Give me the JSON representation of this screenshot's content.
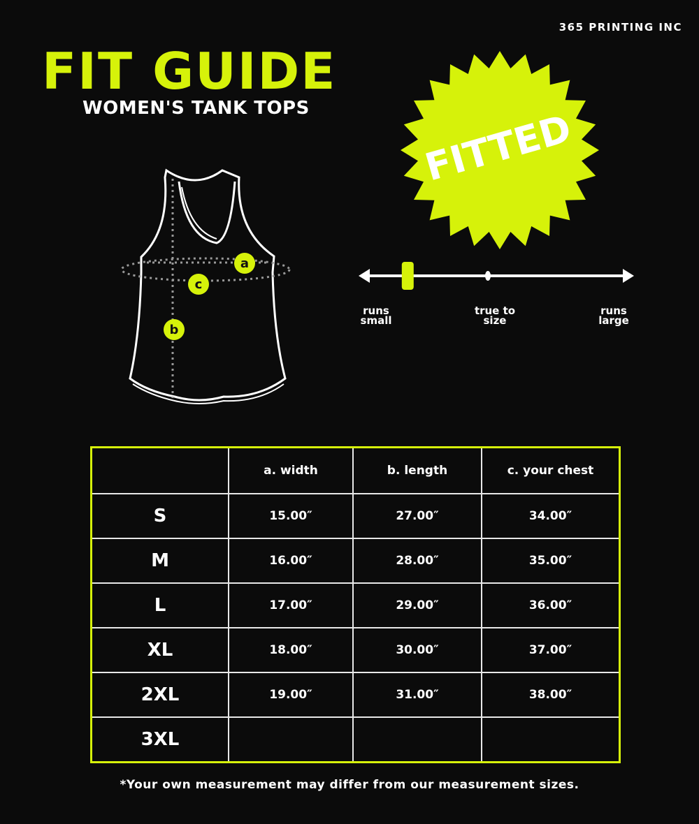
{
  "brand": "365 PRINTING INC",
  "title": "FIT GUIDE",
  "subtitle": "WOMEN'S TANK TOPS",
  "badge": "FITTED",
  "colors": {
    "accent": "#d6f20a",
    "background": "#0b0b0b",
    "text": "#ffffff"
  },
  "diagram": {
    "labels": [
      "a",
      "b",
      "c"
    ]
  },
  "fit_scale": {
    "labels": {
      "small": [
        "runs",
        "small"
      ],
      "true": [
        "true to",
        "size"
      ],
      "large": [
        "runs",
        "large"
      ]
    },
    "position": 0.17
  },
  "table": {
    "headers": [
      "",
      "a. width",
      "b. length",
      "c. your chest"
    ],
    "rows": [
      [
        "S",
        "15.00″",
        "27.00″",
        "34.00″"
      ],
      [
        "M",
        "16.00″",
        "28.00″",
        "35.00″"
      ],
      [
        "L",
        "17.00″",
        "29.00″",
        "36.00″"
      ],
      [
        "XL",
        "18.00″",
        "30.00″",
        "37.00″"
      ],
      [
        "2XL",
        "19.00″",
        "31.00″",
        "38.00″"
      ],
      [
        "3XL",
        "",
        "",
        ""
      ]
    ]
  },
  "note": "*Your own measurement may differ from our measurement sizes."
}
